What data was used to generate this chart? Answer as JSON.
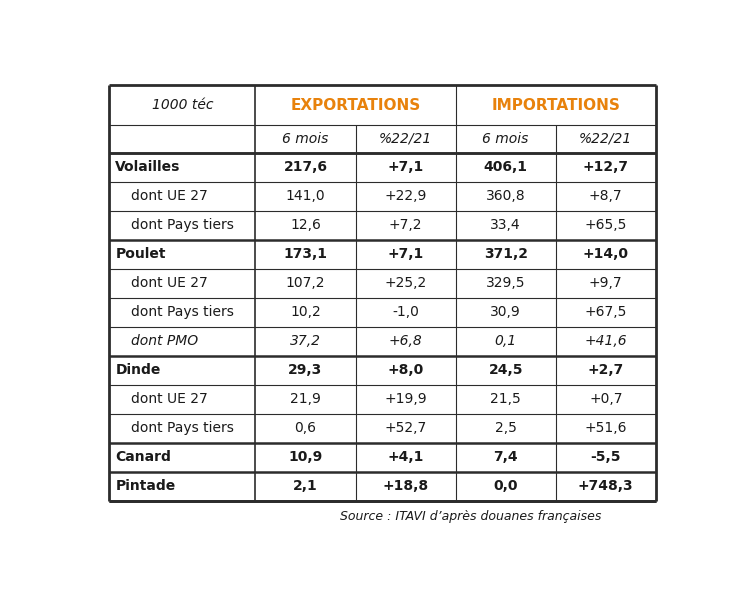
{
  "title_unit": "1000 téc",
  "header_export": "EXPORTATIONS",
  "header_import": "IMPORTATIONS",
  "subheader": [
    "6 mois",
    "%22/21",
    "6 mois",
    "%22/21"
  ],
  "source": "Source : ITAVI d’après douanes françaises",
  "orange_color": "#E8820C",
  "rows": [
    {
      "label": "Volailles",
      "bold": true,
      "italic": false,
      "indent": false,
      "section_top": true,
      "values": [
        "217,6",
        "+7,1",
        "406,1",
        "+12,7"
      ]
    },
    {
      "label": "dont UE 27",
      "bold": false,
      "italic": false,
      "indent": true,
      "section_top": false,
      "values": [
        "141,0",
        "+22,9",
        "360,8",
        "+8,7"
      ]
    },
    {
      "label": "dont Pays tiers",
      "bold": false,
      "italic": false,
      "indent": true,
      "section_top": false,
      "values": [
        "12,6",
        "+7,2",
        "33,4",
        "+65,5"
      ]
    },
    {
      "label": "Poulet",
      "bold": true,
      "italic": false,
      "indent": false,
      "section_top": true,
      "values": [
        "173,1",
        "+7,1",
        "371,2",
        "+14,0"
      ]
    },
    {
      "label": "dont UE 27",
      "bold": false,
      "italic": false,
      "indent": true,
      "section_top": false,
      "values": [
        "107,2",
        "+25,2",
        "329,5",
        "+9,7"
      ]
    },
    {
      "label": "dont Pays tiers",
      "bold": false,
      "italic": false,
      "indent": true,
      "section_top": false,
      "values": [
        "10,2",
        "-1,0",
        "30,9",
        "+67,5"
      ]
    },
    {
      "label": "dont PMO",
      "bold": false,
      "italic": true,
      "indent": true,
      "section_top": false,
      "values": [
        "37,2",
        "+6,8",
        "0,1",
        "+41,6"
      ]
    },
    {
      "label": "Dinde",
      "bold": true,
      "italic": false,
      "indent": false,
      "section_top": true,
      "values": [
        "29,3",
        "+8,0",
        "24,5",
        "+2,7"
      ]
    },
    {
      "label": "dont UE 27",
      "bold": false,
      "italic": false,
      "indent": true,
      "section_top": false,
      "values": [
        "21,9",
        "+19,9",
        "21,5",
        "+0,7"
      ]
    },
    {
      "label": "dont Pays tiers",
      "bold": false,
      "italic": false,
      "indent": true,
      "section_top": false,
      "values": [
        "0,6",
        "+52,7",
        "2,5",
        "+51,6"
      ]
    },
    {
      "label": "Canard",
      "bold": true,
      "italic": false,
      "indent": false,
      "section_top": true,
      "values": [
        "10,9",
        "+4,1",
        "7,4",
        "-5,5"
      ]
    },
    {
      "label": "Pintade",
      "bold": true,
      "italic": false,
      "indent": false,
      "section_top": true,
      "values": [
        "2,1",
        "+18,8",
        "0,0",
        "+748,3"
      ]
    }
  ],
  "fig_bg": "#FFFFFF",
  "border_color": "#2C2C2C",
  "text_color": "#1A1A1A",
  "thin_lw": 0.8,
  "thick_lw": 2.0,
  "section_lw": 1.8
}
